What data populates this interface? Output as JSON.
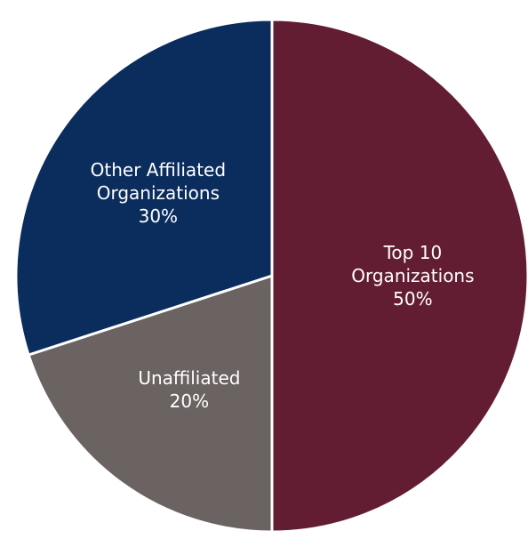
{
  "chart_data": {
    "type": "pie",
    "categories": [
      "Top 10 Organizations",
      "Unaffiliated",
      "Other Affiliated Organizations"
    ],
    "values": [
      50,
      20,
      30
    ],
    "value_labels": [
      "50%",
      "20%",
      "30%"
    ],
    "colors": [
      "#631d33",
      "#6b6361",
      "#0b2d5e"
    ]
  }
}
